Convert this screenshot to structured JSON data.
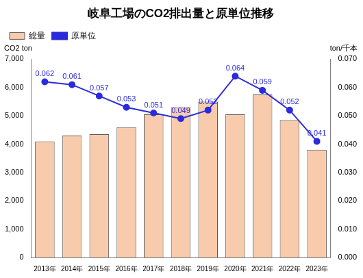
{
  "chart_data": {
    "type": "bar",
    "title": "岐阜工場のCO2排出量と原単位推移",
    "y_label": "CO2 ton",
    "y2_label": "ton/千本",
    "categories": [
      "2013年",
      "2014年",
      "2015年",
      "2016年",
      "2017年",
      "2018年",
      "2019年",
      "2020年",
      "2021年",
      "2022年",
      "2023年"
    ],
    "series": [
      {
        "name": "総量",
        "type": "bar",
        "color": "#f8cbad",
        "axis": "y",
        "values": [
          4100,
          4300,
          4350,
          4600,
          5050,
          5300,
          5500,
          5050,
          5750,
          4850,
          3800
        ]
      },
      {
        "name": "原単位",
        "type": "line",
        "color": "#2b2bdc",
        "axis": "y2",
        "marker": "circle",
        "data_labels": true,
        "values": [
          0.062,
          0.061,
          0.057,
          0.053,
          0.051,
          0.049,
          0.052,
          0.064,
          0.059,
          0.052,
          0.041
        ]
      }
    ],
    "ylim": [
      0,
      7000
    ],
    "yticks": [
      0,
      {
        "value": 1000,
        "label": "1,000"
      },
      {
        "value": 2000,
        "label": "2,000"
      },
      {
        "value": 3000,
        "label": "3,000"
      },
      {
        "value": 4000,
        "label": "4,000"
      },
      {
        "value": 5000,
        "label": "5,000"
      },
      {
        "value": 6000,
        "label": "6,000"
      },
      {
        "value": 7000,
        "label": "7,000"
      }
    ],
    "y2lim": [
      0,
      0.07
    ],
    "y2ticks": [
      {
        "value": 0,
        "label": "0.000"
      },
      {
        "value": 0.01,
        "label": "0.010"
      },
      {
        "value": 0.02,
        "label": "0.020"
      },
      {
        "value": 0.03,
        "label": "0.030"
      },
      {
        "value": 0.04,
        "label": "0.040"
      },
      {
        "value": 0.05,
        "label": "0.050"
      },
      {
        "value": 0.06,
        "label": "0.060"
      },
      {
        "value": 0.07,
        "label": "0.070"
      }
    ],
    "grid": false,
    "legend": "top-left"
  }
}
